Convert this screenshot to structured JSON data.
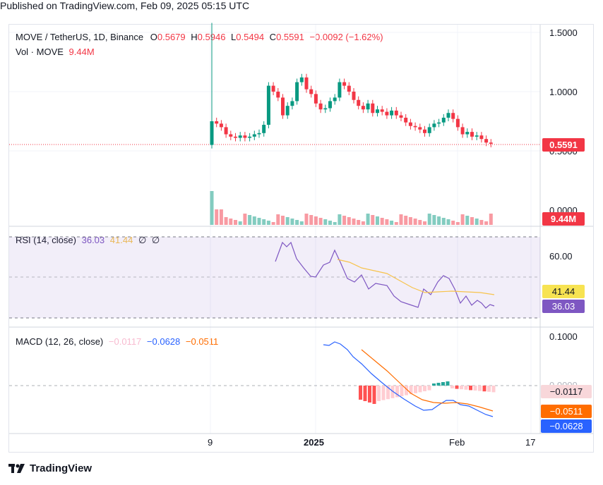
{
  "published": "Published on TradingView.com, Feb 09, 2025 05:15 UTC",
  "main": {
    "symbol": "MOVE / TetherUS, 1D, Binance",
    "open_label": "O",
    "open": "0.5679",
    "high_label": "H",
    "high": "0.5946",
    "low_label": "L",
    "low": "0.5494",
    "close_label": "C",
    "close": "0.5591",
    "change": "−0.0092 (−1.62%)",
    "vol_label": "Vol · MOVE",
    "vol": "9.44M",
    "price_ticks": [
      "1.5000",
      "1.0000",
      "0.5000",
      "0.0000"
    ],
    "last_price": "0.5591",
    "vol_tag": "9.44M"
  },
  "rsi": {
    "label": "RSI (14, close)",
    "rsi_value": "36.03",
    "ma_value": "41.44",
    "extra1": "∅",
    "extra2": "∅",
    "tick": "60.00",
    "tag_ma": "41.44",
    "tag_rsi": "36.03"
  },
  "macd": {
    "label": "MACD (12, 26, close)",
    "hist": "−0.0117",
    "macd": "−0.0628",
    "signal": "−0.0511",
    "tick_top": "0.1000",
    "tick_zero": "0.0000",
    "tag_hist": "−0.0117",
    "tag_signal": "−0.0511",
    "tag_macd": "−0.0628"
  },
  "time_axis": [
    "9",
    "2025",
    "Feb",
    "17"
  ],
  "brand": "TradingView",
  "colors": {
    "up": "#089981",
    "down": "#f23645",
    "rsi": "#7e57c2",
    "rsi_ma": "#f7c34c",
    "macd": "#2962ff",
    "signal": "#ff6d00",
    "hist_up": "#26a69a",
    "hist_down": "#ff5252"
  }
}
